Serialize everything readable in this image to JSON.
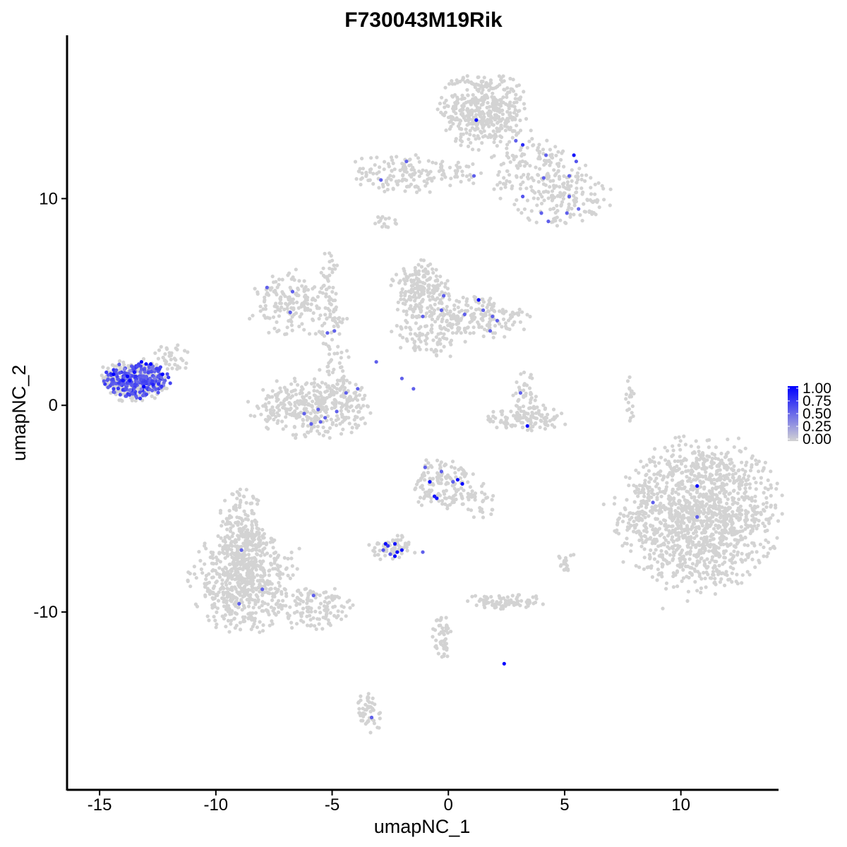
{
  "chart_data": {
    "type": "scatter",
    "title": "F730043M19Rik",
    "xlabel": "umapNC_1",
    "ylabel": "umapNC_2",
    "xlim": [
      -16.4,
      14.2
    ],
    "ylim": [
      -18.6,
      17.9
    ],
    "xticks": [
      -15,
      -10,
      -5,
      0,
      5,
      10
    ],
    "xtick_labels": [
      "-15",
      "-10",
      "-5",
      "0",
      "5",
      "10"
    ],
    "yticks": [
      -10,
      0,
      10
    ],
    "ytick_labels": [
      "-10",
      "0",
      "10"
    ],
    "grid": false,
    "legend": {
      "placement": "right",
      "type": "colorbar",
      "labels": [
        "1.00",
        "0.75",
        "0.50",
        "0.25",
        "0.00"
      ],
      "values": [
        1.0,
        0.75,
        0.5,
        0.25,
        0.0
      ]
    },
    "color_scale": {
      "low": "#d3d3d3",
      "high": "#0000ff"
    },
    "background_clusters": [
      {
        "x": 10.8,
        "y": -5.3,
        "sx": 1.7,
        "sy": 1.8,
        "n": 1400
      },
      {
        "x": 1.5,
        "y": 14.3,
        "sx": 0.9,
        "sy": 0.9,
        "n": 450
      },
      {
        "x": 3.5,
        "y": 11.5,
        "sx": 0.8,
        "sy": 1.0,
        "n": 120
      },
      {
        "x": 5.0,
        "y": 10.2,
        "sx": 1.0,
        "sy": 0.8,
        "n": 160
      },
      {
        "x": -2.0,
        "y": 11.2,
        "sx": 1.1,
        "sy": 0.5,
        "n": 120
      },
      {
        "x": 0.2,
        "y": 11.3,
        "sx": 0.8,
        "sy": 0.3,
        "n": 40
      },
      {
        "x": -8.8,
        "y": -8.5,
        "sx": 1.1,
        "sy": 1.2,
        "n": 600
      },
      {
        "x": -8.9,
        "y": -6.2,
        "sx": 0.5,
        "sy": 1.0,
        "n": 170
      },
      {
        "x": -5.8,
        "y": -9.8,
        "sx": 1.0,
        "sy": 0.5,
        "n": 130
      },
      {
        "x": -5.9,
        "y": -0.1,
        "sx": 1.3,
        "sy": 0.7,
        "n": 330
      },
      {
        "x": -6.6,
        "y": 4.9,
        "sx": 0.9,
        "sy": 0.8,
        "n": 180
      },
      {
        "x": -4.9,
        "y": 3.0,
        "sx": 0.3,
        "sy": 1.2,
        "n": 60
      },
      {
        "x": -1.2,
        "y": 5.5,
        "sx": 0.6,
        "sy": 0.7,
        "n": 200
      },
      {
        "x": 1.5,
        "y": 4.3,
        "sx": 1.0,
        "sy": 0.5,
        "n": 160
      },
      {
        "x": -0.8,
        "y": 3.5,
        "sx": 0.8,
        "sy": 0.6,
        "n": 110
      },
      {
        "x": 3.3,
        "y": -0.6,
        "sx": 0.9,
        "sy": 0.3,
        "n": 120
      },
      {
        "x": 3.4,
        "y": 0.7,
        "sx": 0.3,
        "sy": 0.6,
        "n": 35
      },
      {
        "x": -0.2,
        "y": -3.8,
        "sx": 0.7,
        "sy": 0.6,
        "n": 150
      },
      {
        "x": 1.2,
        "y": -4.6,
        "sx": 0.4,
        "sy": 0.5,
        "n": 30
      },
      {
        "x": -2.4,
        "y": -6.9,
        "sx": 0.5,
        "sy": 0.3,
        "n": 70
      },
      {
        "x": 2.4,
        "y": -9.5,
        "sx": 0.8,
        "sy": 0.2,
        "n": 80
      },
      {
        "x": -0.3,
        "y": -11.2,
        "sx": 0.2,
        "sy": 0.6,
        "n": 50
      },
      {
        "x": -3.4,
        "y": -14.8,
        "sx": 0.25,
        "sy": 0.6,
        "n": 50
      },
      {
        "x": -13.5,
        "y": 1.2,
        "sx": 0.7,
        "sy": 0.5,
        "n": 320
      },
      {
        "x": -12.0,
        "y": 2.2,
        "sx": 0.4,
        "sy": 0.4,
        "n": 40
      },
      {
        "x": -5.2,
        "y": 6.5,
        "sx": 0.2,
        "sy": 0.6,
        "n": 25
      },
      {
        "x": -2.8,
        "y": 8.9,
        "sx": 0.3,
        "sy": 0.15,
        "n": 15
      },
      {
        "x": 7.8,
        "y": 0.3,
        "sx": 0.1,
        "sy": 0.6,
        "n": 20
      },
      {
        "x": 5.0,
        "y": -7.5,
        "sx": 0.2,
        "sy": 0.3,
        "n": 20
      },
      {
        "x": -5.0,
        "y": 0.7,
        "sx": 0.7,
        "sy": 0.5,
        "n": 60
      }
    ],
    "points": [
      {
        "x": 1.2,
        "y": 13.8,
        "v": 1.0
      },
      {
        "x": 3.2,
        "y": 12.6,
        "v": 0.8
      },
      {
        "x": 2.9,
        "y": 12.8,
        "v": 0.55
      },
      {
        "x": 4.2,
        "y": 12.1,
        "v": 0.55
      },
      {
        "x": 5.4,
        "y": 12.1,
        "v": 0.9
      },
      {
        "x": 5.5,
        "y": 11.8,
        "v": 0.6
      },
      {
        "x": 5.2,
        "y": 11.1,
        "v": 0.55
      },
      {
        "x": 4.1,
        "y": 11.0,
        "v": 0.55
      },
      {
        "x": 3.2,
        "y": 10.1,
        "v": 0.6
      },
      {
        "x": 5.2,
        "y": 10.1,
        "v": 0.55
      },
      {
        "x": 4.0,
        "y": 9.3,
        "v": 0.55
      },
      {
        "x": 4.3,
        "y": 8.9,
        "v": 0.55
      },
      {
        "x": 5.1,
        "y": 9.3,
        "v": 0.55
      },
      {
        "x": 5.6,
        "y": 9.5,
        "v": 0.5
      },
      {
        "x": 1.1,
        "y": 11.1,
        "v": 0.55
      },
      {
        "x": -1.8,
        "y": 11.8,
        "v": 0.55
      },
      {
        "x": -2.9,
        "y": 10.9,
        "v": 0.55
      },
      {
        "x": -7.8,
        "y": 5.7,
        "v": 0.55
      },
      {
        "x": -6.7,
        "y": 5.5,
        "v": 0.55
      },
      {
        "x": -6.8,
        "y": 4.5,
        "v": 0.55
      },
      {
        "x": -4.9,
        "y": 3.6,
        "v": 0.55
      },
      {
        "x": -5.2,
        "y": 3.5,
        "v": 0.55
      },
      {
        "x": -0.2,
        "y": 5.3,
        "v": 0.55
      },
      {
        "x": 1.3,
        "y": 5.1,
        "v": 1.0
      },
      {
        "x": -0.3,
        "y": 4.6,
        "v": 0.55
      },
      {
        "x": 1.5,
        "y": 4.6,
        "v": 0.55
      },
      {
        "x": 0.7,
        "y": 4.4,
        "v": 0.55
      },
      {
        "x": 1.9,
        "y": 4.3,
        "v": 0.55
      },
      {
        "x": -1.1,
        "y": 4.3,
        "v": 0.55
      },
      {
        "x": 2.1,
        "y": 4.1,
        "v": 0.55
      },
      {
        "x": 1.8,
        "y": 3.6,
        "v": 0.55
      },
      {
        "x": -3.1,
        "y": 2.1,
        "v": 0.55
      },
      {
        "x": -2.0,
        "y": 1.3,
        "v": 0.55
      },
      {
        "x": -1.5,
        "y": 0.8,
        "v": 0.55
      },
      {
        "x": -3.9,
        "y": 0.8,
        "v": 0.55
      },
      {
        "x": -4.4,
        "y": 0.6,
        "v": 0.55
      },
      {
        "x": -5.6,
        "y": -0.2,
        "v": 0.55
      },
      {
        "x": -4.8,
        "y": -0.3,
        "v": 0.55
      },
      {
        "x": -5.3,
        "y": -0.6,
        "v": 0.55
      },
      {
        "x": -6.2,
        "y": -0.4,
        "v": 0.55
      },
      {
        "x": -5.9,
        "y": -0.9,
        "v": 0.55
      },
      {
        "x": -5.5,
        "y": -0.8,
        "v": 0.55
      },
      {
        "x": 3.1,
        "y": 0.6,
        "v": 0.55
      },
      {
        "x": 3.4,
        "y": -1.0,
        "v": 0.95
      },
      {
        "x": -1.0,
        "y": -3.0,
        "v": 0.55
      },
      {
        "x": -0.3,
        "y": -3.2,
        "v": 0.55
      },
      {
        "x": -0.8,
        "y": -3.7,
        "v": 0.95
      },
      {
        "x": 0.4,
        "y": -3.6,
        "v": 1.0
      },
      {
        "x": 0.6,
        "y": -3.8,
        "v": 1.0
      },
      {
        "x": 0.2,
        "y": -3.7,
        "v": 0.55
      },
      {
        "x": -0.6,
        "y": -4.4,
        "v": 0.9
      },
      {
        "x": -0.5,
        "y": -4.5,
        "v": 0.9
      },
      {
        "x": -2.7,
        "y": -6.7,
        "v": 0.95
      },
      {
        "x": -2.6,
        "y": -6.8,
        "v": 0.75
      },
      {
        "x": -2.3,
        "y": -6.7,
        "v": 0.9
      },
      {
        "x": -2.8,
        "y": -7.0,
        "v": 0.6
      },
      {
        "x": -2.0,
        "y": -7.0,
        "v": 0.95
      },
      {
        "x": -2.2,
        "y": -7.1,
        "v": 1.0
      },
      {
        "x": -2.3,
        "y": -7.3,
        "v": 1.0
      },
      {
        "x": -2.5,
        "y": -7.2,
        "v": 0.6
      },
      {
        "x": -1.1,
        "y": -7.1,
        "v": 0.55
      },
      {
        "x": -8.9,
        "y": -7.0,
        "v": 0.55
      },
      {
        "x": -8.0,
        "y": -8.9,
        "v": 0.55
      },
      {
        "x": -9.0,
        "y": -9.6,
        "v": 0.55
      },
      {
        "x": -5.8,
        "y": -9.2,
        "v": 0.55
      },
      {
        "x": 2.4,
        "y": -12.5,
        "v": 1.0
      },
      {
        "x": -3.3,
        "y": -15.1,
        "v": 0.55
      },
      {
        "x": 8.8,
        "y": -4.7,
        "v": 0.55
      },
      {
        "x": 10.7,
        "y": -3.9,
        "v": 0.95
      },
      {
        "x": 10.7,
        "y": -5.4,
        "v": 0.55
      }
    ],
    "cluster_highlight": {
      "center": [
        -13.4,
        1.2
      ],
      "spread": [
        0.75,
        0.45
      ],
      "n": 240,
      "value_mean": 0.6,
      "high_points": [
        {
          "x": -14.4,
          "y": 1.5,
          "v": 1.0
        },
        {
          "x": -13.8,
          "y": 1.4,
          "v": 1.0
        },
        {
          "x": -13.7,
          "y": 1.2,
          "v": 0.95
        },
        {
          "x": -13.5,
          "y": 1.6,
          "v": 0.9
        },
        {
          "x": -13.2,
          "y": 2.1,
          "v": 1.0
        },
        {
          "x": -13.0,
          "y": 2.0,
          "v": 0.95
        },
        {
          "x": -12.8,
          "y": 2.0,
          "v": 1.0
        },
        {
          "x": -12.3,
          "y": 1.5,
          "v": 1.0
        },
        {
          "x": -13.1,
          "y": 0.9,
          "v": 1.0
        },
        {
          "x": -14.0,
          "y": 1.2,
          "v": 0.9
        },
        {
          "x": -12.7,
          "y": 1.0,
          "v": 0.85
        }
      ]
    }
  }
}
